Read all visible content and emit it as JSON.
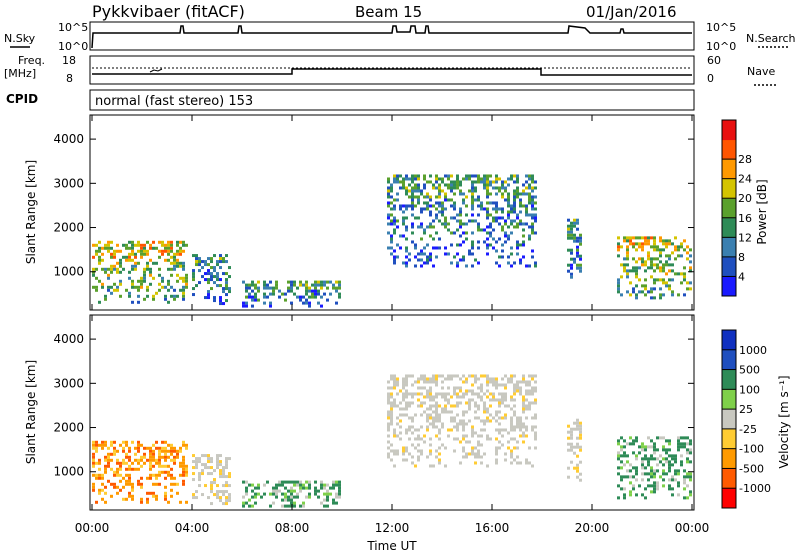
{
  "header": {
    "station": "Pykkvibaer (fitACF)",
    "beam": "Beam 15",
    "date": "01/Jan/2016"
  },
  "top_panels": {
    "nsky_label": "N.Sky",
    "nsearch_label": "N.Search",
    "noise_ticks_left": [
      "10^5",
      "10^0"
    ],
    "noise_ticks_right": [
      "10^5",
      "10^0"
    ],
    "freq_label": "Freq.",
    "freq_unit": "[MHz]",
    "freq_ticks": [
      "18",
      "8"
    ],
    "nave_label": "Nave",
    "nave_ticks": [
      "60",
      "0"
    ],
    "cpid_label": "CPID",
    "cpid_text": "normal (fast stereo) 153"
  },
  "colors": {
    "power": [
      "#1a1aff",
      "#1f4fbf",
      "#3a7fb0",
      "#2e8b57",
      "#5aa02c",
      "#d4c400",
      "#ff9900",
      "#ff5500",
      "#e81010"
    ],
    "velocity": [
      "#ff0000",
      "#ff5a00",
      "#ff9a00",
      "#ffcc33",
      "#c8c8c0",
      "#7fd04a",
      "#2e8b57",
      "#1f4fbf",
      "#1030c0"
    ]
  },
  "chart_data": [
    {
      "type": "heatmap",
      "panel": "power",
      "ylabel": "Slant Range [km]",
      "yticks": [
        "1000",
        "2000",
        "3000",
        "4000"
      ],
      "ylim": [
        180,
        4500
      ],
      "xlim": [
        0,
        24
      ],
      "colorbar_label": "Power [dB]",
      "colorbar_ticks": [
        "4",
        "8",
        "12",
        "16",
        "20",
        "24",
        "28"
      ],
      "regions": [
        {
          "t0": 0.0,
          "t1": 3.8,
          "r0": 250,
          "r1": 1700,
          "level": "high"
        },
        {
          "t0": 4.0,
          "t1": 5.6,
          "r0": 250,
          "r1": 1400,
          "level": "mid"
        },
        {
          "t0": 6.0,
          "t1": 10.0,
          "r0": 200,
          "r1": 800,
          "level": "mid"
        },
        {
          "t0": 11.8,
          "t1": 17.8,
          "r0": 1100,
          "r1": 3200,
          "level": "mid"
        },
        {
          "t0": 19.0,
          "t1": 19.6,
          "r0": 800,
          "r1": 2200,
          "level": "mid"
        },
        {
          "t0": 21.0,
          "t1": 24.0,
          "r0": 350,
          "r1": 1800,
          "level": "high"
        }
      ]
    },
    {
      "type": "heatmap",
      "panel": "velocity",
      "xlabel": "Time UT",
      "ylabel": "Slant Range [km]",
      "xticks": [
        "00:00",
        "04:00",
        "08:00",
        "12:00",
        "16:00",
        "20:00",
        "00:00"
      ],
      "yticks": [
        "1000",
        "2000",
        "3000",
        "4000"
      ],
      "ylim": [
        180,
        4500
      ],
      "xlim": [
        0,
        24
      ],
      "colorbar_label": "Velocity [m s⁻¹]",
      "colorbar_ticks": [
        "1000",
        "500",
        "100",
        "25",
        "-25",
        "-100",
        "-500",
        "-1000"
      ],
      "regions": [
        {
          "t0": 0.0,
          "t1": 3.8,
          "r0": 250,
          "r1": 1700,
          "level": "neg"
        },
        {
          "t0": 4.0,
          "t1": 5.6,
          "r0": 250,
          "r1": 1400,
          "level": "zero"
        },
        {
          "t0": 6.0,
          "t1": 10.0,
          "r0": 200,
          "r1": 800,
          "level": "pos"
        },
        {
          "t0": 11.8,
          "t1": 17.8,
          "r0": 1100,
          "r1": 3200,
          "level": "zero"
        },
        {
          "t0": 19.0,
          "t1": 19.6,
          "r0": 800,
          "r1": 2200,
          "level": "zero"
        },
        {
          "t0": 21.0,
          "t1": 24.0,
          "r0": 350,
          "r1": 1800,
          "level": "pos"
        }
      ]
    }
  ]
}
